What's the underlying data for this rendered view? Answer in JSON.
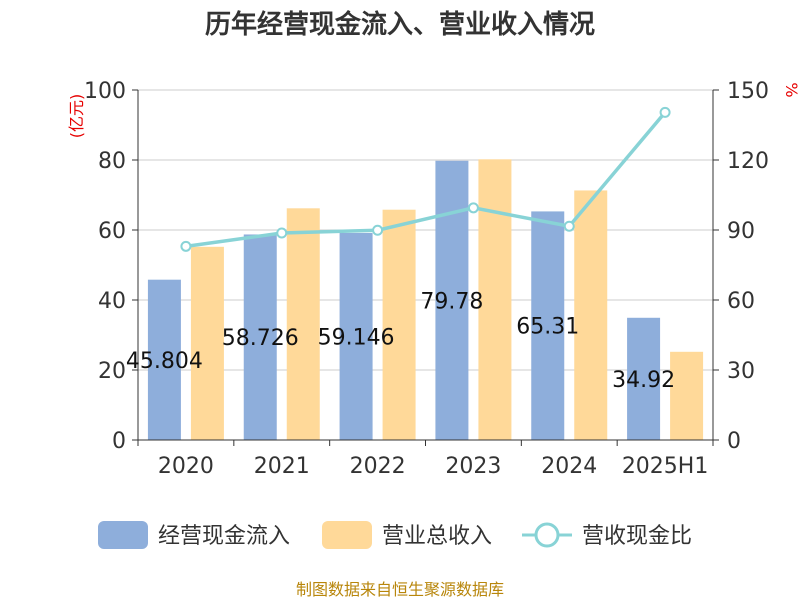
{
  "chart_data": {
    "type": "bar",
    "title": "历年经营现金流入、营业收入情况",
    "left_unit": "(亿元)",
    "right_unit": "%",
    "categories": [
      "2020",
      "2021",
      "2022",
      "2023",
      "2024",
      "2025H1"
    ],
    "series": [
      {
        "name": "经营现金流入",
        "type": "bar",
        "axis": "left",
        "color": "#8eaedb",
        "values": [
          45.804,
          58.726,
          59.146,
          79.78,
          65.31,
          34.92
        ],
        "labels": [
          "45.804",
          "58.726",
          "59.146",
          "79.78",
          "65.31",
          "34.92"
        ]
      },
      {
        "name": "营业总收入",
        "type": "bar",
        "axis": "left",
        "color": "#ffd999",
        "values": [
          55.2,
          66.2,
          65.8,
          80.2,
          71.3,
          25.2
        ]
      },
      {
        "name": "营收现金比",
        "type": "line",
        "axis": "right",
        "color": "#88d3d6",
        "values": [
          83,
          88.7,
          89.9,
          99.5,
          91.6,
          140.4
        ]
      }
    ],
    "left_axis": {
      "min": 0,
      "max": 100,
      "ticks": [
        0,
        20,
        40,
        60,
        80,
        100
      ]
    },
    "right_axis": {
      "min": 0,
      "max": 150,
      "ticks": [
        0,
        30,
        60,
        90,
        120,
        150
      ]
    },
    "grid": true,
    "legend_position": "bottom"
  },
  "source": "制图数据来自恒生聚源数据库"
}
